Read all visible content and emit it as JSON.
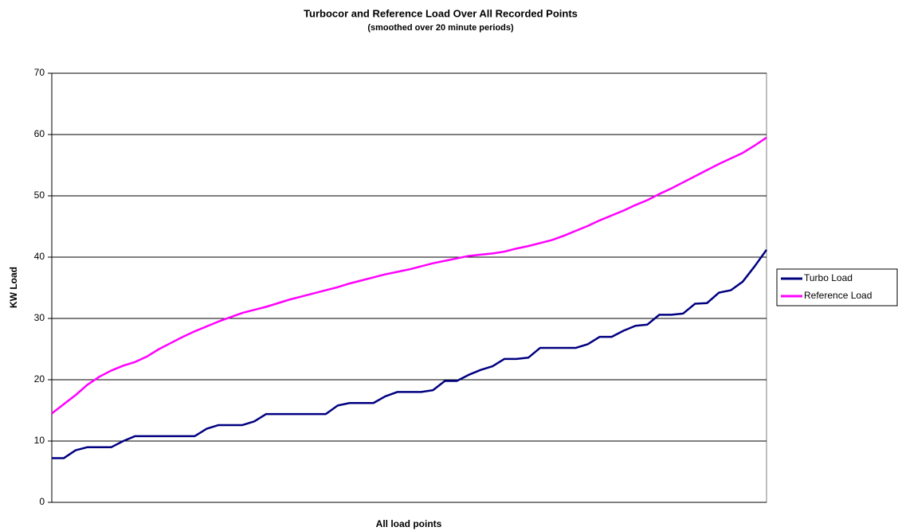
{
  "chart_data": {
    "type": "line",
    "title": "Turbocor and Reference Load Over All Recorded Points",
    "subtitle": "(smoothed over 20 minute periods)",
    "x_label": "All load points",
    "y_label": "KW Load",
    "categories": [
      null,
      null,
      null,
      null,
      null,
      null,
      null,
      null,
      null,
      null,
      null,
      null,
      null,
      null,
      null,
      null,
      null,
      null,
      null,
      null,
      null,
      null,
      null,
      null,
      null,
      null,
      null,
      null,
      null,
      null,
      null,
      null,
      null,
      null,
      null,
      null,
      null,
      null,
      null,
      null,
      null,
      null,
      null,
      null,
      null,
      null,
      null,
      null,
      null,
      null,
      null,
      null,
      null,
      null,
      null,
      null,
      null,
      null,
      null,
      null,
      null
    ],
    "series": [
      {
        "name": "Turbo Load",
        "color": "#000080",
        "values": [
          7.2,
          7.2,
          8.5,
          9,
          9,
          9,
          10,
          10.8,
          10.8,
          10.8,
          10.8,
          10.8,
          10.8,
          12,
          12.6,
          12.6,
          12.6,
          13.2,
          14.4,
          14.4,
          14.4,
          14.4,
          14.4,
          14.4,
          15.8,
          16.2,
          16.2,
          16.2,
          17.3,
          18,
          18,
          18,
          18.3,
          19.8,
          19.8,
          20.8,
          21.6,
          22.2,
          23.4,
          23.4,
          23.6,
          25.2,
          25.2,
          25.2,
          25.2,
          25.8,
          27,
          27,
          28,
          28.8,
          29,
          30.6,
          30.6,
          30.8,
          32.4,
          32.5,
          34.2,
          34.6,
          36,
          38.5,
          41.2
        ]
      },
      {
        "name": "Reference Load",
        "color": "#ff00ff",
        "values": [
          14.5,
          16,
          17.5,
          19.2,
          20.5,
          21.5,
          22.3,
          22.9,
          23.8,
          25,
          26,
          27,
          27.9,
          28.7,
          29.5,
          30.2,
          30.9,
          31.4,
          31.9,
          32.5,
          33.1,
          33.6,
          34.1,
          34.6,
          35.1,
          35.7,
          36.2,
          36.7,
          37.2,
          37.6,
          38,
          38.5,
          39,
          39.4,
          39.8,
          40.2,
          40.4,
          40.6,
          40.9,
          41.4,
          41.8,
          42.3,
          42.8,
          43.5,
          44.3,
          45.1,
          46,
          46.8,
          47.6,
          48.5,
          49.3,
          50.3,
          51.2,
          52.2,
          53.2,
          54.2,
          55.2,
          56.1,
          57,
          58.2,
          59.5
        ]
      }
    ],
    "ylim": [
      0,
      70
    ],
    "yticks": [
      0,
      10,
      20,
      30,
      40,
      50,
      60,
      70
    ],
    "grid": true,
    "legend": "right"
  }
}
